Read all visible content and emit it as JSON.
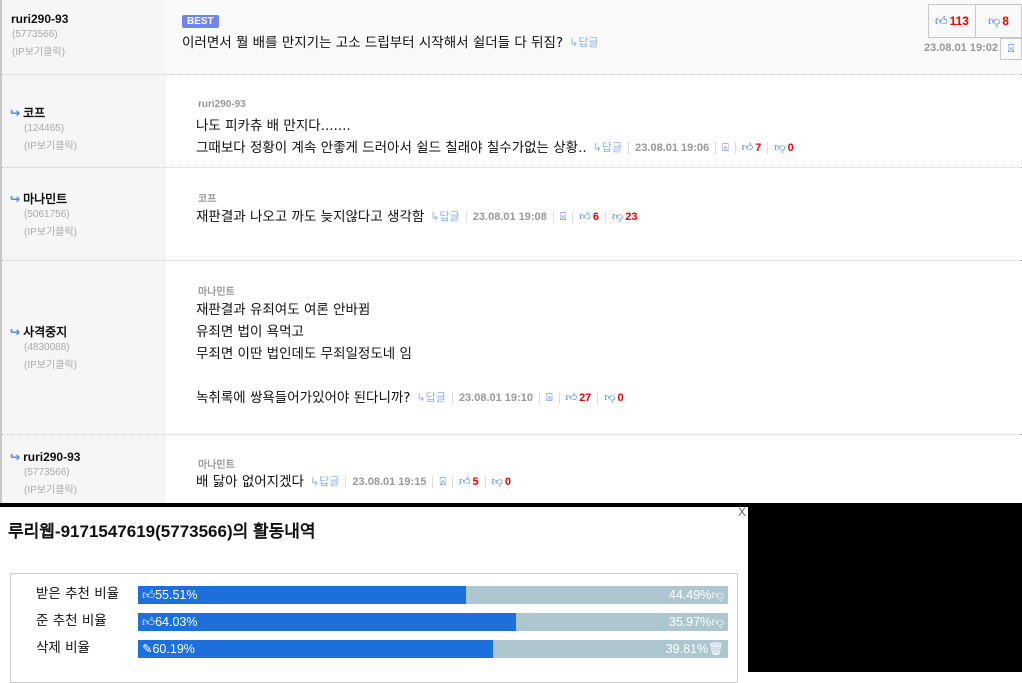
{
  "best": {
    "badge": "BEST",
    "nickname": "ruri290-93",
    "user_id": "(5773566)",
    "ip_label": "(IP보기클릭)",
    "text": "이러면서 뭘 배를 만지기는 고소 드립부터 시작해서 쉴더들 다 뒤짐?",
    "reply_label": "↳답글",
    "upvotes": "113",
    "downvotes": "8",
    "date": "23.08.01 19:02"
  },
  "comments": [
    {
      "nickname": "코프",
      "user_id": "(124465)",
      "ip_label": "(IP보기클릭)",
      "quote": "ruri290-93",
      "lines": [
        "나도 피카츄 배 만지다.......",
        "그때보다 정황이 계속 안좋게 드러아서 쉴드 칠래야 칠수가없는 상황.."
      ],
      "reply_label": "↳답글",
      "date": "23.08.01 19:06",
      "upvotes": "7",
      "downvotes": "0"
    },
    {
      "nickname": "마나민트",
      "user_id": "(5061756)",
      "ip_label": "(IP보기클릭)",
      "quote": "코프",
      "lines": [
        "재판결과 나오고 까도 늦지않다고 생각함"
      ],
      "reply_label": "↳답글",
      "date": "23.08.01 19:08",
      "upvotes": "6",
      "downvotes": "23"
    },
    {
      "nickname": "사격중지",
      "user_id": "(4830088)",
      "ip_label": "(IP보기클릭)",
      "quote": "마나민트",
      "lines": [
        "재판결과 유죄여도 여론 안바뀜",
        "유죄면 법이 욕먹고",
        "무죄면 이딴 법인데도 무죄일정도네 임",
        "",
        "녹취록에 쌍욕들어가있어야 된다니까?"
      ],
      "reply_label": "↳답글",
      "date": "23.08.01 19:10",
      "upvotes": "27",
      "downvotes": "0"
    },
    {
      "nickname": "ruri290-93",
      "user_id": "(5773566)",
      "ip_label": "(IP보기클릭)",
      "quote": "마나민트",
      "lines": [
        "배 닳아 없어지겠다"
      ],
      "reply_label": "↳답글",
      "date": "23.08.01 19:15",
      "upvotes": "5",
      "downvotes": "0"
    }
  ],
  "popup": {
    "close_label": "X",
    "title": "루리웹-9171547619(5773566)의 활동내역",
    "stats": [
      {
        "label": "받은 추천 비율",
        "left": "55.51%",
        "right": "44.49%",
        "percent": 55.51,
        "left_icon": "thumbs-up",
        "right_icon": "thumbs-down"
      },
      {
        "label": "준 추천 비율",
        "left": "64.03%",
        "right": "35.97%",
        "percent": 64.03,
        "left_icon": "thumbs-up",
        "right_icon": "thumbs-down"
      },
      {
        "label": "삭제 비율",
        "left": "60.19%",
        "right": "39.81%",
        "percent": 60.19,
        "left_icon": "edit",
        "right_icon": "trash"
      }
    ]
  },
  "colors": {
    "bar_fill": "#1d6fdb",
    "bar_bg": "#adc6d0",
    "best_badge": "#6f86f0",
    "vote_count": "#ee0000"
  }
}
